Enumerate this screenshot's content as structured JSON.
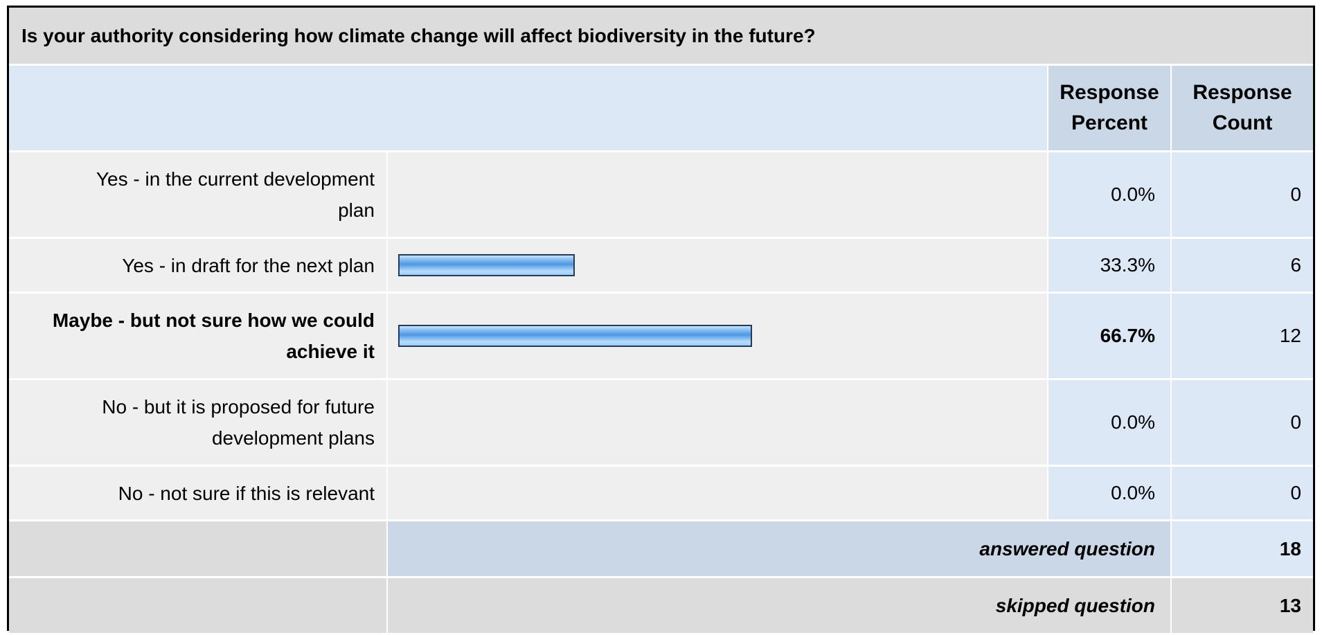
{
  "question": "Is your authority considering how climate change will affect biodiversity in the future?",
  "headers": {
    "percent": [
      "Response",
      "Percent"
    ],
    "count": [
      "Response",
      "Count"
    ]
  },
  "colors": {
    "bar": "#4e97e3",
    "header_bg": "#c9d7e6",
    "cell_bg": "#dce8f5",
    "label_bg": "#efefef"
  },
  "rows": [
    {
      "label_lines": [
        "Yes - in the current development",
        "plan"
      ],
      "percent": "0.0%",
      "count": "0",
      "bold": false
    },
    {
      "label_lines": [
        "Yes - in draft for the next plan"
      ],
      "percent": "33.3%",
      "count": "6",
      "bold": false
    },
    {
      "label_lines": [
        "Maybe - but not sure how we could",
        "achieve it"
      ],
      "percent": "66.7%",
      "count": "12",
      "bold": true
    },
    {
      "label_lines": [
        "No - but it is proposed for future",
        "development plans"
      ],
      "percent": "0.0%",
      "count": "0",
      "bold": false
    },
    {
      "label_lines": [
        "No - not sure if this is relevant"
      ],
      "percent": "0.0%",
      "count": "0",
      "bold": false
    }
  ],
  "summary": {
    "answered_label": "answered question",
    "answered_value": "18",
    "skipped_label": "skipped question",
    "skipped_value": "13"
  },
  "chart_data": {
    "type": "bar",
    "orientation": "horizontal",
    "categories": [
      "Yes - in the current development plan",
      "Yes - in draft for the next plan",
      "Maybe - but not sure how we could achieve it",
      "No - but it is proposed for future development plans",
      "No - not sure if this is relevant"
    ],
    "values": [
      0.0,
      33.3,
      66.7,
      0.0,
      0.0
    ],
    "counts": [
      0,
      6,
      12,
      0,
      0
    ],
    "title": "Is your authority considering how climate change will affect biodiversity in the future?",
    "xlim": [
      0,
      100
    ]
  }
}
